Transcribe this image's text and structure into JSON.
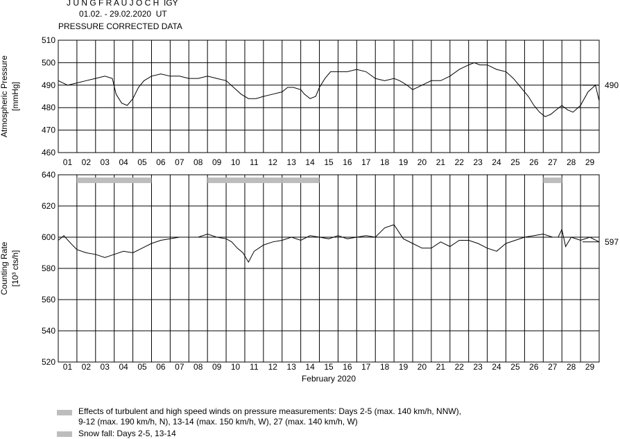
{
  "header": {
    "station": "J U N G F R A U J O C H  IGY",
    "period": "01.02. - 29.02.2020  UT",
    "subtitle": "PRESSURE CORRECTED DATA"
  },
  "colors": {
    "line": "#000000",
    "grid": "#000000",
    "bar": "#bdbdbd"
  },
  "chart_data": [
    {
      "type": "line",
      "ylabel": "Atmospheric Pressure",
      "yunit": "[mmHg]",
      "ylim": [
        460,
        510
      ],
      "yticks": [
        460,
        470,
        480,
        490,
        500,
        510
      ],
      "xlim": [
        0,
        29
      ],
      "x_tick_labels": [
        "01",
        "02",
        "03",
        "04",
        "05",
        "06",
        "07",
        "08",
        "09",
        "10",
        "11",
        "12",
        "13",
        "14",
        "15",
        "16",
        "17",
        "18",
        "19",
        "20",
        "21",
        "22",
        "23",
        "24",
        "25",
        "26",
        "27",
        "28",
        "29"
      ],
      "grid": true,
      "reference_value": 490,
      "reference_label": "490",
      "series": [
        {
          "x": [
            0,
            0.5,
            1,
            1.5,
            2,
            2.5,
            2.9,
            3.1,
            3.4,
            3.7,
            4,
            4.3,
            4.6,
            5,
            5.5,
            6,
            6.5,
            7,
            7.5,
            8,
            8.5,
            9,
            9.4,
            9.8,
            10.2,
            10.6,
            11,
            11.5,
            12,
            12.3,
            12.6,
            13,
            13.2,
            13.5,
            13.8,
            14,
            14.3,
            14.6,
            15,
            15.5,
            16,
            16.5,
            17,
            17.5,
            18,
            18.3,
            18.7,
            19,
            19.5,
            20,
            20.5,
            21,
            21.5,
            22,
            22.3,
            22.6,
            23,
            23.5,
            24,
            24.4,
            24.8,
            25.2,
            25.5,
            25.8,
            26.1,
            26.4,
            26.7,
            27,
            27.3,
            27.6,
            28,
            28.4,
            28.8,
            29
          ],
          "y": [
            492,
            490,
            491,
            492,
            493,
            494,
            493,
            486,
            482,
            481,
            484,
            489,
            492,
            494,
            495,
            494,
            494,
            493,
            493,
            494,
            493,
            492,
            489,
            486,
            484,
            484,
            485,
            486,
            487,
            489,
            489,
            488,
            486,
            484,
            485,
            489,
            493,
            496,
            496,
            496,
            497,
            496,
            493,
            492,
            493,
            492,
            490,
            488,
            490,
            492,
            492,
            494,
            497,
            499,
            500,
            499,
            499,
            497,
            496,
            493,
            489,
            485,
            481,
            478,
            476,
            477,
            479,
            481,
            479,
            478,
            481,
            487,
            490,
            483
          ]
        }
      ]
    },
    {
      "type": "line",
      "ylabel": "Counting Rate",
      "yunit": "[10³ cts/h]",
      "ylim": [
        520,
        640
      ],
      "yticks": [
        520,
        540,
        560,
        580,
        600,
        620,
        640
      ],
      "xlim": [
        0,
        29
      ],
      "x_tick_labels": [
        "01",
        "02",
        "03",
        "04",
        "05",
        "06",
        "07",
        "08",
        "09",
        "10",
        "11",
        "12",
        "13",
        "14",
        "15",
        "16",
        "17",
        "18",
        "19",
        "20",
        "21",
        "22",
        "23",
        "24",
        "25",
        "26",
        "27",
        "28",
        "29"
      ],
      "xlabel": "February 2020",
      "grid": true,
      "reference_value": 597,
      "reference_label": "597",
      "series": [
        {
          "x": [
            0,
            0.3,
            0.6,
            1,
            1.5,
            2,
            2.5,
            3,
            3.5,
            4,
            4.5,
            5,
            5.5,
            6,
            6.5,
            7,
            7.5,
            8,
            8.5,
            9,
            9.3,
            9.6,
            9.9,
            10.2,
            10.5,
            11,
            11.5,
            12,
            12.5,
            13,
            13.5,
            14,
            14.5,
            15,
            15.5,
            16,
            16.5,
            17,
            17.5,
            18,
            18.5,
            19,
            19.5,
            20,
            20.5,
            21,
            21.5,
            22,
            22.5,
            23,
            23.5,
            24,
            24.5,
            25,
            25.5,
            26,
            26.5,
            26.8,
            27,
            27.2,
            27.5,
            28,
            28.5,
            29
          ],
          "y": [
            598,
            601,
            597,
            592,
            590,
            589,
            587,
            589,
            591,
            590,
            593,
            596,
            598,
            599,
            600,
            600,
            600,
            602,
            600,
            599,
            597,
            593,
            590,
            584,
            591,
            595,
            597,
            598,
            600,
            598,
            601,
            600,
            599,
            601,
            599,
            600,
            601,
            600,
            606,
            608,
            599,
            596,
            593,
            593,
            597,
            594,
            598,
            598,
            596,
            593,
            591,
            596,
            598,
            600,
            601,
            602,
            600,
            600,
            605,
            594,
            600,
            598,
            600,
            597
          ]
        }
      ],
      "bars": [
        {
          "days": "2-5",
          "start": 1,
          "end": 5
        },
        {
          "days": "9-12",
          "start": 8,
          "end": 12
        },
        {
          "days": "13-14",
          "start": 12,
          "end": 14
        },
        {
          "days": "27",
          "start": 26,
          "end": 27
        }
      ]
    }
  ],
  "legend": {
    "wind_line1": "Effects of turbulent and high speed winds on pressure measurements: Days 2-5 (max. 140 km/h, NNW),",
    "wind_line2": "9-12 (max. 190 km/h, N), 13-14 (max. 150 km/h, W), 27 (max. 140 km/h, W)",
    "snow": "Snow fall: Days 2-5, 13-14"
  }
}
